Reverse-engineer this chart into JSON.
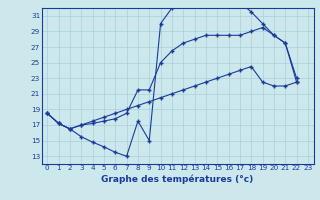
{
  "xlabel": "Graphe des températures (°c)",
  "bg_color": "#cce8ec",
  "line_color": "#1a3a9a",
  "grid_color": "#aacfd8",
  "xlim": [
    -0.5,
    23.5
  ],
  "ylim": [
    12,
    32
  ],
  "yticks": [
    13,
    15,
    17,
    19,
    21,
    23,
    25,
    27,
    29,
    31
  ],
  "xticks": [
    0,
    1,
    2,
    3,
    4,
    5,
    6,
    7,
    8,
    9,
    10,
    11,
    12,
    13,
    14,
    15,
    16,
    17,
    18,
    19,
    20,
    21,
    22,
    23
  ],
  "series_max": {
    "x": [
      0,
      1,
      2,
      3,
      4,
      5,
      6,
      7,
      8,
      9,
      10,
      11,
      12,
      13,
      14,
      15,
      16,
      17,
      18,
      19,
      20,
      21,
      22
    ],
    "y": [
      18.5,
      17.2,
      16.5,
      15.5,
      14.8,
      14.2,
      13.5,
      13.0,
      17.5,
      15.0,
      30.0,
      32.0,
      32.5,
      32.5,
      32.7,
      32.5,
      32.4,
      32.7,
      31.5,
      30.0,
      28.5,
      27.5,
      22.5
    ]
  },
  "series_mid": {
    "x": [
      0,
      1,
      2,
      3,
      4,
      5,
      6,
      7,
      8,
      9,
      10,
      11,
      12,
      13,
      14,
      15,
      16,
      17,
      18,
      19,
      20,
      21,
      22
    ],
    "y": [
      18.5,
      17.2,
      16.5,
      17.0,
      17.2,
      17.5,
      17.8,
      18.5,
      21.5,
      21.5,
      25.0,
      26.5,
      27.5,
      28.0,
      28.5,
      28.5,
      28.5,
      28.5,
      29.0,
      29.5,
      28.5,
      27.5,
      23.0
    ]
  },
  "series_min": {
    "x": [
      0,
      1,
      2,
      3,
      4,
      5,
      6,
      7,
      8,
      9,
      10,
      11,
      12,
      13,
      14,
      15,
      16,
      17,
      18,
      19,
      20,
      21,
      22
    ],
    "y": [
      18.5,
      17.2,
      16.5,
      17.0,
      17.5,
      18.0,
      18.5,
      19.0,
      19.5,
      20.0,
      20.5,
      21.0,
      21.5,
      22.0,
      22.5,
      23.0,
      23.5,
      24.0,
      24.5,
      22.5,
      22.0,
      22.0,
      22.5
    ]
  },
  "xlabel_fontsize": 6.5,
  "tick_fontsize": 5.2
}
